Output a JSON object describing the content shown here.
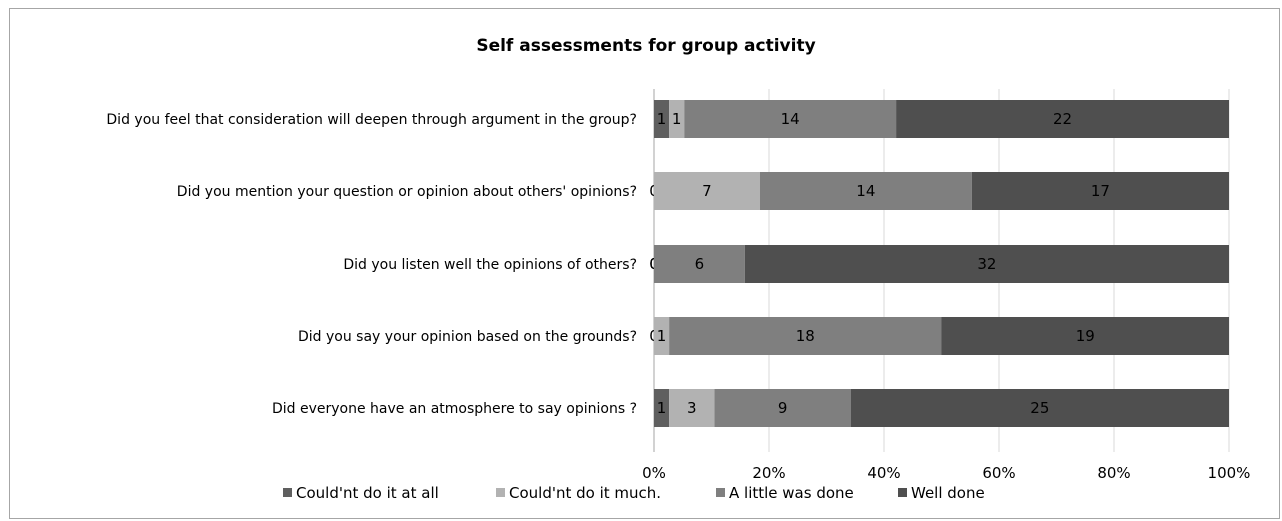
{
  "chart_data": {
    "type": "bar",
    "orientation": "horizontal",
    "stacking": "percent",
    "title": "Self assessments for group activity",
    "categories": [
      "Did you feel that consideration will deepen through argument in the group?",
      "Did you mention your question or opinion about others' opinions?",
      "Did you listen well the opinions of others?",
      "Did you say your opinion based on the grounds?",
      "Did everyone have an atmosphere to say opinions ?"
    ],
    "series": [
      {
        "name": "Could'nt do it at all",
        "color": "#5f5f5f",
        "values": [
          1,
          0,
          0,
          0,
          1
        ]
      },
      {
        "name": "Could'nt do it much.",
        "color": "#b2b2b2",
        "values": [
          1,
          7,
          0,
          1,
          3
        ]
      },
      {
        "name": "A little was done",
        "color": "#7f7f7f",
        "values": [
          14,
          14,
          6,
          18,
          9
        ]
      },
      {
        "name": "Well done",
        "color": "#4f4f4f",
        "values": [
          22,
          17,
          32,
          19,
          25
        ]
      }
    ],
    "x_ticks": [
      "0%",
      "20%",
      "40%",
      "60%",
      "80%",
      "100%"
    ],
    "xlim": [
      0,
      100
    ],
    "grid": true,
    "legend": "bottom"
  }
}
